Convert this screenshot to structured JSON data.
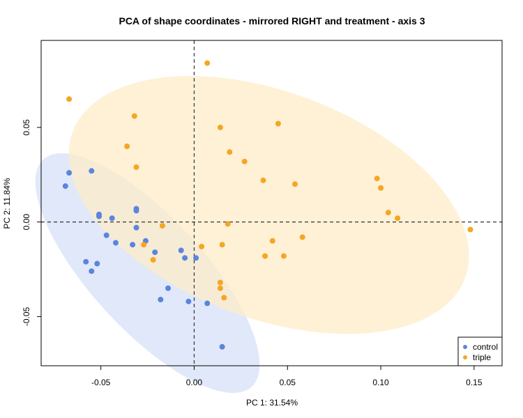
{
  "chart_data": {
    "type": "scatter",
    "title": "PCA of shape coordinates - mirrored RIGHT and treatment - axis 3",
    "xlabel": "PC 1: 31.54%",
    "ylabel": "PC 2: 11.84%",
    "xlim": [
      -0.082,
      0.165
    ],
    "ylim": [
      -0.076,
      0.096
    ],
    "x_ticks": [
      -0.05,
      0.0,
      0.05,
      0.1,
      0.15
    ],
    "x_tick_labels": [
      "-0.05",
      "0.00",
      "0.05",
      "0.10",
      "0.15"
    ],
    "y_ticks": [
      -0.05,
      0.0,
      0.05
    ],
    "y_tick_labels": [
      "-0.05",
      "0.00",
      "0.05"
    ],
    "reference_lines": {
      "x": 0,
      "y": 0,
      "style": "dashed"
    },
    "legend_position": "bottom-right",
    "series": [
      {
        "name": "control",
        "color": "#5b84de",
        "ellipse_color": "#d6e0f7",
        "ellipse": {
          "cx": -0.025,
          "cy": -0.027,
          "rx": 0.082,
          "ry": 0.03,
          "angle_deg": -47
        },
        "points": [
          [
            -0.069,
            0.019
          ],
          [
            -0.067,
            0.026
          ],
          [
            -0.055,
            0.027
          ],
          [
            -0.051,
            0.004
          ],
          [
            -0.051,
            0.003
          ],
          [
            -0.047,
            -0.007
          ],
          [
            -0.044,
            0.002
          ],
          [
            -0.042,
            -0.011
          ],
          [
            -0.058,
            -0.021
          ],
          [
            -0.052,
            -0.022
          ],
          [
            -0.055,
            -0.026
          ],
          [
            -0.031,
            0.007
          ],
          [
            -0.031,
            0.006
          ],
          [
            -0.031,
            -0.003
          ],
          [
            -0.033,
            -0.012
          ],
          [
            -0.026,
            -0.01
          ],
          [
            -0.021,
            -0.016
          ],
          [
            -0.007,
            -0.015
          ],
          [
            -0.005,
            -0.019
          ],
          [
            0.001,
            -0.019
          ],
          [
            -0.014,
            -0.035
          ],
          [
            -0.018,
            -0.041
          ],
          [
            -0.003,
            -0.042
          ],
          [
            0.007,
            -0.043
          ],
          [
            0.015,
            -0.066
          ]
        ]
      },
      {
        "name": "triple",
        "color": "#f5a623",
        "ellipse_color": "#fdecc8",
        "ellipse": {
          "cx": 0.04,
          "cy": 0.009,
          "rx": 0.112,
          "ry": 0.06,
          "angle_deg": -20
        },
        "points": [
          [
            0.007,
            0.084
          ],
          [
            -0.067,
            0.065
          ],
          [
            -0.032,
            0.056
          ],
          [
            -0.036,
            0.04
          ],
          [
            -0.031,
            0.029
          ],
          [
            0.014,
            0.05
          ],
          [
            0.019,
            0.037
          ],
          [
            0.027,
            0.032
          ],
          [
            0.045,
            0.052
          ],
          [
            0.037,
            0.022
          ],
          [
            0.054,
            0.02
          ],
          [
            0.098,
            0.023
          ],
          [
            0.1,
            0.018
          ],
          [
            0.104,
            0.005
          ],
          [
            0.109,
            0.002
          ],
          [
            0.148,
            -0.004
          ],
          [
            -0.017,
            -0.002
          ],
          [
            -0.027,
            -0.012
          ],
          [
            -0.022,
            -0.02
          ],
          [
            0.018,
            -0.001
          ],
          [
            0.004,
            -0.013
          ],
          [
            0.015,
            -0.012
          ],
          [
            0.042,
            -0.01
          ],
          [
            0.058,
            -0.008
          ],
          [
            0.038,
            -0.018
          ],
          [
            0.048,
            -0.018
          ],
          [
            0.014,
            -0.032
          ],
          [
            0.014,
            -0.035
          ],
          [
            0.016,
            -0.04
          ]
        ]
      }
    ]
  }
}
